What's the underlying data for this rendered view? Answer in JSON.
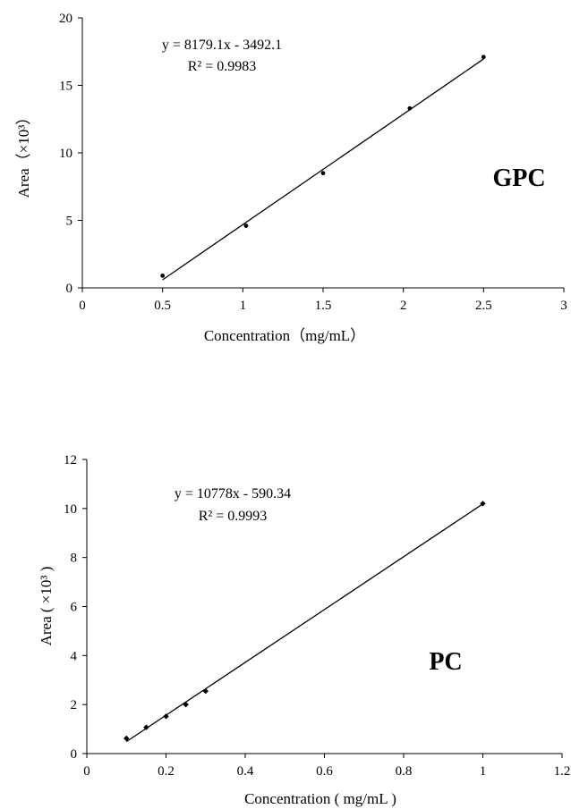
{
  "chart_data": [
    {
      "type": "scatter",
      "label": "GPC",
      "xlabel": "Concentration（mg/mL）",
      "ylabel": "Area（×10³）",
      "xlim": [
        0,
        3
      ],
      "ylim": [
        0,
        20
      ],
      "xticks": [
        "0",
        "0.5",
        "1",
        "1.5",
        "2",
        "2.5",
        "3"
      ],
      "yticks": [
        "0",
        "5",
        "10",
        "15",
        "20"
      ],
      "x": [
        0.5,
        1.02,
        1.5,
        2.04,
        2.5
      ],
      "y": [
        0.9,
        4.6,
        8.5,
        13.3,
        17.1
      ],
      "trendline": {
        "slope": 8.1791,
        "intercept": -3.4921,
        "x_range": [
          0.5,
          2.5
        ]
      },
      "equation": "y = 8179.1x - 3492.1",
      "r2": "R² = 0.9983",
      "grid": false
    },
    {
      "type": "scatter",
      "label": "PC",
      "xlabel": "Concentration ( mg/mL )",
      "ylabel": "Area ( ×10³ )",
      "xlim": [
        0,
        1.2
      ],
      "ylim": [
        0,
        12
      ],
      "xticks": [
        "0",
        "0.2",
        "0.4",
        "0.6",
        "0.8",
        "1",
        "1.2"
      ],
      "yticks": [
        "0",
        "2",
        "4",
        "6",
        "8",
        "10",
        "12"
      ],
      "x": [
        0.1,
        0.15,
        0.2,
        0.25,
        0.3,
        1.0
      ],
      "y": [
        0.62,
        1.07,
        1.52,
        2.0,
        2.55,
        10.2
      ],
      "trendline": {
        "slope": 10.778,
        "intercept": -0.59034,
        "x_range": [
          0.1,
          1.0
        ]
      },
      "equation": "y = 10778x - 590.34",
      "r2": "R² = 0.9993",
      "grid": false
    }
  ]
}
